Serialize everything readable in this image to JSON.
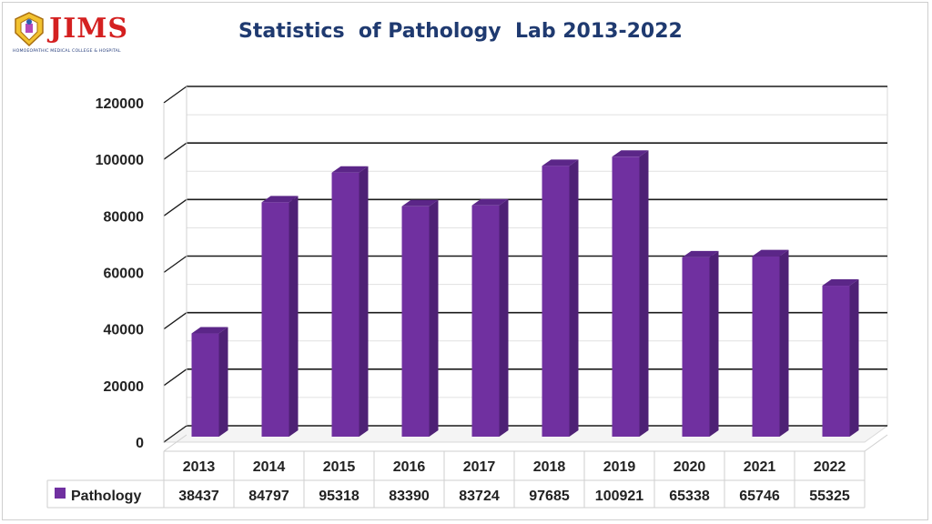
{
  "logo": {
    "text": "JIMS",
    "subtitle": "HOMOEOPATHIC MEDICAL COLLEGE & HOSPITAL",
    "emblem": "crest-icon"
  },
  "title": "Statistics  of Pathology  Lab 2013-2022",
  "colors": {
    "bar_front": "#7030a0",
    "bar_side": "#4e2175",
    "bar_top": "#5b2688",
    "title": "#1f3a70",
    "logo_red": "#d42020"
  },
  "chart_data": {
    "type": "bar",
    "title": "Statistics  of Pathology  Lab 2013-2022",
    "categories": [
      "2013",
      "2014",
      "2015",
      "2016",
      "2017",
      "2018",
      "2019",
      "2020",
      "2021",
      "2022"
    ],
    "series": [
      {
        "name": "Pathology",
        "values": [
          38437,
          84797,
          95318,
          83390,
          83724,
          97685,
          100921,
          65338,
          65746,
          55325
        ]
      }
    ],
    "yticks": [
      "0",
      "20000",
      "40000",
      "60000",
      "80000",
      "100000",
      "120000"
    ],
    "ylim": [
      0,
      120000
    ],
    "grid": true,
    "legend": "data-table-left",
    "style": "3d-column"
  }
}
